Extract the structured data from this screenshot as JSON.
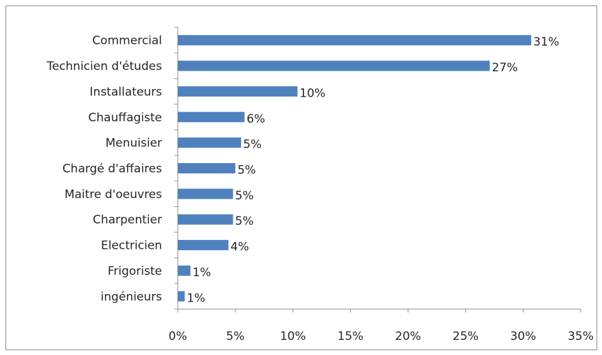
{
  "chart_data": {
    "type": "bar",
    "orientation": "horizontal",
    "categories": [
      "Commercial",
      "Technicien d'études",
      "Installateurs",
      "Chauffagiste",
      "Menuisier",
      "Chargé d'affaires",
      "Maitre d'oeuvres",
      "Charpentier",
      "Electricien",
      "Frigoriste",
      "ingénieurs"
    ],
    "values": [
      30.7,
      27.1,
      10.4,
      5.8,
      5.5,
      5.0,
      4.8,
      4.8,
      4.4,
      1.1,
      0.6
    ],
    "data_labels": [
      "31%",
      "27%",
      "10%",
      "6%",
      "5%",
      "5%",
      "5%",
      "5%",
      "4%",
      "1%",
      "1%"
    ],
    "x_ticks": [
      0,
      5,
      10,
      15,
      20,
      25,
      30,
      35
    ],
    "x_tick_labels": [
      "0%",
      "5%",
      "10%",
      "15%",
      "20%",
      "25%",
      "30%",
      "35%"
    ],
    "xlim": [
      0,
      35
    ],
    "bar_color": "#4f81bd",
    "grid": false,
    "legend": "none"
  }
}
